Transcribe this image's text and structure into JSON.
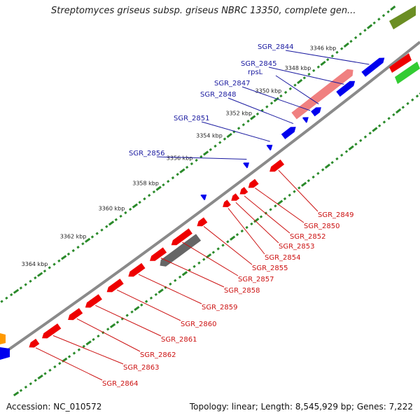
{
  "title": "Streptomyces griseus subsp. griseus NBRC 13350, complete gen...",
  "footer": {
    "accession": "Accession: NC_010572",
    "summary": "Topology: linear; Length: 8,545,929 bp; Genes: 7,222"
  },
  "scale_ticks": [
    "3346 kbp",
    "3348 kbp",
    "3350 kbp",
    "3352 kbp",
    "3354 kbp",
    "3356 kbp",
    "3358 kbp",
    "3360 kbp",
    "3362 kbp",
    "3364 kbp"
  ],
  "top_gene_labels": [
    "SGR_2844",
    "SGR_2845",
    "rpsL",
    "SGR_2847",
    "SGR_2848",
    "SGR_2851",
    "SGR_2856"
  ],
  "bottom_gene_labels": [
    "SGR_2849",
    "SGR_2850",
    "SGR_2852",
    "SGR_2853",
    "SGR_2854",
    "SGR_2855",
    "SGR_2857",
    "SGR_2858",
    "SGR_2859",
    "SGR_2860",
    "SGR_2861",
    "SGR_2862",
    "SGR_2863",
    "SGR_2864"
  ],
  "colors": {
    "backbone": "#8a8a8a",
    "outer_dots": "#2a8a2a",
    "plus_strand": "#0000ee",
    "minus_strand": "#ee0000",
    "rna_feature": "#f08080",
    "pseudo_feature": "#666666",
    "olive_track": "#6b8e23",
    "green_track": "#33cc33",
    "orange_track": "#ff9900"
  }
}
